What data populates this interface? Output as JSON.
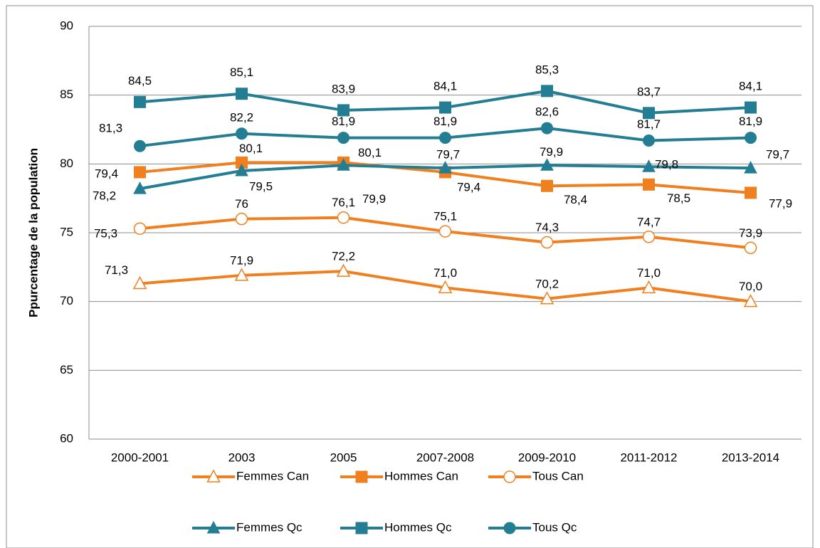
{
  "chart_data": {
    "type": "line",
    "ylabel": "Ppurcentage de la population",
    "categories": [
      "2000-2001",
      "2003",
      "2005",
      "2007-2008",
      "2009-2010",
      "2011-2012",
      "2013-2014"
    ],
    "ylim": [
      60,
      90
    ],
    "yticks": [
      60,
      65,
      70,
      75,
      80,
      85,
      90
    ],
    "grid": true,
    "series": [
      {
        "name": "Femmes Can",
        "color": "#f0801f",
        "marker": "triangle-open",
        "values": [
          71.3,
          71.9,
          72.2,
          71.0,
          70.2,
          71.0,
          70.0
        ],
        "value_labels": [
          "71,3",
          "71,9",
          "72,2",
          "71,0",
          "70,2",
          "71,0",
          "70,0"
        ]
      },
      {
        "name": "Hommes Can",
        "color": "#f0801f",
        "marker": "square",
        "values": [
          79.4,
          80.1,
          80.1,
          79.4,
          78.4,
          78.5,
          77.9
        ],
        "value_labels": [
          "79,4",
          "80,1",
          "80,1",
          "79,4",
          "78,4",
          "78,5",
          "77,9"
        ]
      },
      {
        "name": "Tous Can",
        "color": "#f0801f",
        "marker": "circle-open",
        "values": [
          75.3,
          76,
          76.1,
          75.1,
          74.3,
          74.7,
          73.9
        ],
        "value_labels": [
          "75,3",
          "76",
          "76,1",
          "75,1",
          "74,3",
          "74,7",
          "73,9"
        ]
      },
      {
        "name": "Femmes Qc",
        "color": "#237d93",
        "marker": "triangle",
        "values": [
          78.2,
          79.5,
          79.9,
          79.7,
          79.9,
          79.8,
          79.7
        ],
        "value_labels": [
          "78,2",
          "79,5",
          "79,9",
          "79,7",
          "79,9",
          "79,8",
          "79,7"
        ]
      },
      {
        "name": "Hommes Qc",
        "color": "#237d93",
        "marker": "square",
        "values": [
          84.5,
          85.1,
          83.9,
          84.1,
          85.3,
          83.7,
          84.1
        ],
        "value_labels": [
          "84,5",
          "85,1",
          "83,9",
          "84,1",
          "85,3",
          "83,7",
          "84,1"
        ]
      },
      {
        "name": "Tous Qc",
        "color": "#237d93",
        "marker": "circle",
        "values": [
          81.3,
          82.2,
          81.9,
          81.9,
          82.6,
          81.7,
          81.9
        ],
        "value_labels": [
          "81,3",
          "82,2",
          "81,9",
          "81,9",
          "82,6",
          "81,7",
          "81,9"
        ]
      }
    ]
  }
}
